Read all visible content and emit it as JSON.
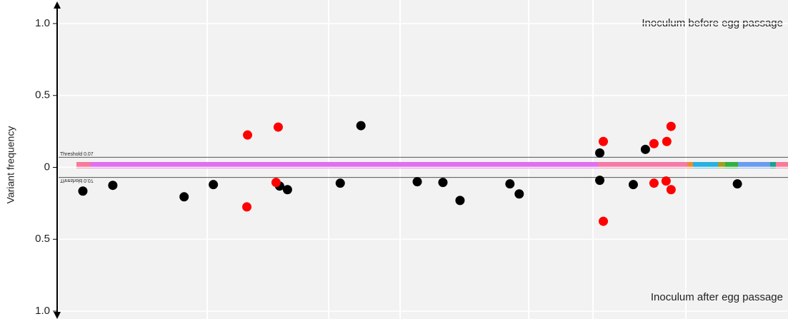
{
  "chart_data": {
    "type": "scatter",
    "y_label": "Variant frequency",
    "annotations": [
      "Inoculum before egg passage",
      "Inoculum after egg passage"
    ],
    "thresholds": [
      {
        "value": 0.07,
        "label": "Threshold 0.07"
      },
      {
        "value": -0.07,
        "label": "Threshold 0.07"
      }
    ],
    "ylim": [
      -1,
      1
    ],
    "yticks": [
      {
        "value": 1,
        "label": "1.0"
      },
      0.5,
      0,
      {
        "value": -0.5,
        "label": "0.5"
      },
      {
        "value": -1,
        "label": "1.0"
      }
    ],
    "xlim": [
      0,
      100
    ],
    "grid": true,
    "series": [
      {
        "color": "#000000",
        "x": [
          1.1,
          5.3,
          15.3,
          19.4,
          28.7,
          29.8,
          37.2,
          40.1,
          48.0,
          51.6,
          54.0,
          61.0,
          62.3,
          73.6,
          73.6,
          78.3,
          80.0,
          92.9
        ],
        "values": [
          -0.165,
          -0.125,
          -0.205,
          -0.12,
          -0.13,
          -0.155,
          -0.11,
          0.29,
          -0.1,
          -0.105,
          -0.23,
          -0.115,
          -0.185,
          0.1,
          -0.09,
          -0.12,
          0.125,
          -0.115
        ]
      },
      {
        "color": "#ff0000",
        "x": [
          24.2,
          24.1,
          28.5,
          28.2,
          74.1,
          74.1,
          81.2,
          83.0,
          83.6,
          81.2,
          82.9,
          83.6
        ],
        "values": [
          0.225,
          -0.275,
          0.28,
          -0.105,
          0.18,
          -0.375,
          0.165,
          0.18,
          0.285,
          -0.11,
          -0.095,
          -0.155
        ]
      }
    ]
  }
}
